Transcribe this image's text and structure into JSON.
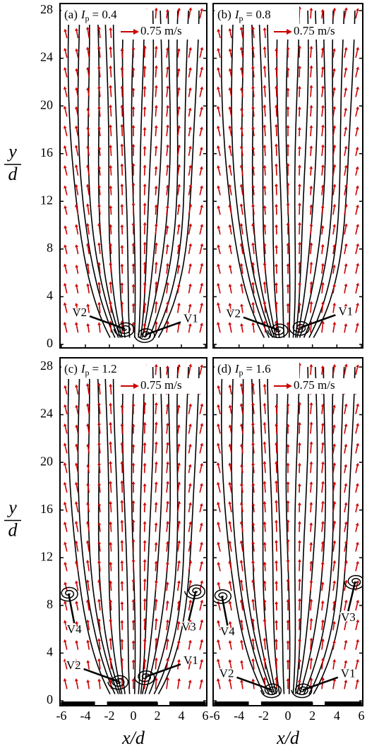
{
  "chart_data": [
    {
      "type": "vector-field",
      "title": {
        "prefix": "(a)",
        "symbol": "I",
        "sub": "p",
        "rest": "= 0.4"
      },
      "scale_label": "0.75 m/s",
      "ylabel_num": "y",
      "ylabel_den": "d",
      "xlim": [
        -6,
        6
      ],
      "xticks": [
        -6,
        -4,
        -2,
        0,
        2,
        4,
        6
      ],
      "ylim": [
        0,
        28
      ],
      "yticks": [
        0,
        4,
        8,
        12,
        16,
        20,
        24,
        28
      ],
      "vector_color": "#cc0000",
      "vortices": [
        {
          "name": "V2",
          "x": -0.7,
          "y": 1.3
        },
        {
          "name": "V1",
          "x": 1.0,
          "y": 0.8
        }
      ]
    },
    {
      "type": "vector-field",
      "title": {
        "prefix": "(b)",
        "symbol": "I",
        "sub": "p",
        "rest": "= 0.8"
      },
      "scale_label": "0.75 m/s",
      "xlim": [
        -6,
        6
      ],
      "xticks": [
        -6,
        -4,
        -2,
        0,
        2,
        4,
        6
      ],
      "ylim": [
        0,
        28
      ],
      "yticks": [
        0,
        4,
        8,
        12,
        16,
        20,
        24,
        28
      ],
      "vector_color": "#cc0000",
      "vortices": [
        {
          "name": "V2",
          "x": -0.75,
          "y": 1.2
        },
        {
          "name": "V1",
          "x": 1.0,
          "y": 1.4
        }
      ]
    },
    {
      "type": "vector-field",
      "title": {
        "prefix": "(c)",
        "symbol": "I",
        "sub": "p",
        "rest": "= 1.2"
      },
      "scale_label": "0.75 m/s",
      "ylabel_num": "y",
      "ylabel_den": "d",
      "xlabel": "x/d",
      "xlim": [
        -6,
        6
      ],
      "xticks": [
        -6,
        -4,
        -2,
        0,
        2,
        4,
        6
      ],
      "ylim": [
        0,
        28
      ],
      "yticks": [
        0,
        4,
        8,
        12,
        16,
        20,
        24,
        28
      ],
      "vector_color": "#cc0000",
      "wall_segments": [
        [
          -6,
          -3.2
        ],
        [
          -2.2,
          2.0
        ],
        [
          3.0,
          6
        ]
      ],
      "vortices": [
        {
          "name": "V2",
          "x": -1.2,
          "y": 1.6
        },
        {
          "name": "V1",
          "x": 1.0,
          "y": 2.0
        },
        {
          "name": "V4",
          "x": -5.4,
          "y": 9.0
        },
        {
          "name": "V3",
          "x": 5.2,
          "y": 9.2
        }
      ]
    },
    {
      "type": "vector-field",
      "title": {
        "prefix": "(d)",
        "symbol": "I",
        "sub": "p",
        "rest": "= 1.6"
      },
      "scale_label": "0.75 m/s",
      "xlabel": "x/d",
      "xlim": [
        -6,
        6
      ],
      "xticks": [
        -6,
        -4,
        -2,
        0,
        2,
        4,
        6
      ],
      "ylim": [
        0,
        28
      ],
      "yticks": [
        0,
        4,
        8,
        12,
        16,
        20,
        24,
        28
      ],
      "vector_color": "#cc0000",
      "wall_segments": [
        [
          -6,
          -3.2
        ],
        [
          -2.2,
          2.0
        ],
        [
          3.0,
          6
        ]
      ],
      "vortices": [
        {
          "name": "V2",
          "x": -1.3,
          "y": 0.9
        },
        {
          "name": "V1",
          "x": 1.2,
          "y": 0.9
        },
        {
          "name": "V4",
          "x": -5.4,
          "y": 8.8
        },
        {
          "name": "V3",
          "x": 5.5,
          "y": 10.0
        }
      ]
    }
  ]
}
